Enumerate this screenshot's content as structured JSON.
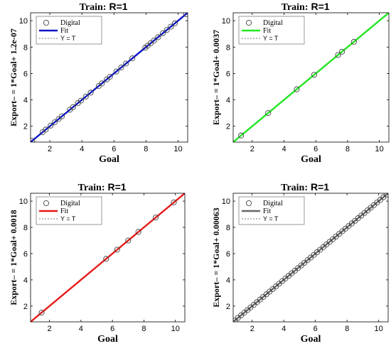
{
  "chart_data": [
    {
      "type": "scatter",
      "title_prefix": "Train:",
      "title_value": "R=1",
      "xlabel": "Goal",
      "ylabel": "Export– = 1*Goal+ 1.2e-07",
      "xlim": [
        0.8,
        10.6
      ],
      "ylim": [
        0.8,
        10.6
      ],
      "xticks": [
        2,
        4,
        6,
        8,
        10
      ],
      "yticks": [
        2,
        4,
        6,
        8,
        10
      ],
      "grid": false,
      "legend_position": "top-left",
      "legend": [
        "Digital",
        "Fit",
        "Y = T"
      ],
      "fit_color": "#0a14c8",
      "fit": {
        "slope": 1,
        "intercept": 1.2e-07
      },
      "points": [
        0.9,
        1.55,
        1.75,
        2.05,
        2.3,
        2.55,
        2.75,
        3.25,
        3.45,
        3.75,
        3.95,
        4.25,
        4.55,
        5.05,
        5.25,
        5.55,
        5.75,
        6.15,
        6.45,
        6.75,
        7.15,
        7.95,
        8.1,
        8.3,
        8.5,
        8.75,
        9.05,
        9.3,
        9.55,
        9.8,
        10.5
      ]
    },
    {
      "type": "scatter",
      "title_prefix": "Train:",
      "title_value": "R=1",
      "xlabel": "Goal",
      "ylabel": "Export– = 1*Goal+ 0.0037",
      "xlim": [
        0.8,
        10.6
      ],
      "ylim": [
        0.8,
        10.6
      ],
      "xticks": [
        2,
        4,
        6,
        8,
        10
      ],
      "yticks": [
        2,
        4,
        6,
        8,
        10
      ],
      "grid": false,
      "legend_position": "top-left",
      "legend": [
        "Digital",
        "Fit",
        "Y = T"
      ],
      "fit_color": "#22e622",
      "fit": {
        "slope": 1,
        "intercept": 0.0037
      },
      "points": [
        1.3,
        3.0,
        4.8,
        5.9,
        7.4,
        7.65,
        8.4
      ]
    },
    {
      "type": "scatter",
      "title_prefix": "Train:",
      "title_value": "R=1",
      "xlabel": "Goal",
      "ylabel": "Export– = 1*Goal+ 0.0018",
      "xlim": [
        0.8,
        10.6
      ],
      "ylim": [
        0.8,
        10.6
      ],
      "xticks": [
        2,
        4,
        6,
        8,
        10
      ],
      "yticks": [
        2,
        4,
        6,
        8,
        10
      ],
      "grid": false,
      "legend_position": "top-left",
      "legend": [
        "Digital",
        "Fit",
        "Y = T"
      ],
      "fit_color": "#e61919",
      "fit": {
        "slope": 1,
        "intercept": 0.0018
      },
      "points": [
        1.5,
        5.6,
        6.3,
        7.0,
        7.65,
        8.75,
        9.9
      ]
    },
    {
      "type": "scatter",
      "title_prefix": "Train:",
      "title_value": "R=1",
      "xlabel": "Goal",
      "ylabel": "Export– = 1*Goal+ 0.00063",
      "xlim": [
        0.8,
        10.6
      ],
      "ylim": [
        0.8,
        10.6
      ],
      "xticks": [
        2,
        4,
        6,
        8,
        10
      ],
      "yticks": [
        2,
        4,
        6,
        8,
        10
      ],
      "grid": false,
      "legend_position": "top-left",
      "legend": [
        "Digital",
        "Fit",
        "Y = T"
      ],
      "fit_color": "#666666",
      "fit": {
        "slope": 1,
        "intercept": 0.00063
      },
      "points": [
        0.9,
        1.1,
        1.3,
        1.5,
        1.7,
        1.9,
        2.1,
        2.3,
        2.5,
        2.7,
        2.9,
        3.1,
        3.3,
        3.5,
        3.7,
        3.9,
        4.1,
        4.3,
        4.5,
        4.7,
        4.9,
        5.1,
        5.3,
        5.5,
        5.7,
        5.9,
        6.1,
        6.3,
        6.5,
        6.7,
        6.9,
        7.1,
        7.3,
        7.5,
        7.7,
        7.9,
        8.1,
        8.3,
        8.5,
        8.7,
        8.9,
        9.1,
        9.3,
        9.5,
        9.7,
        9.9,
        10.1,
        10.3,
        10.5
      ]
    }
  ]
}
